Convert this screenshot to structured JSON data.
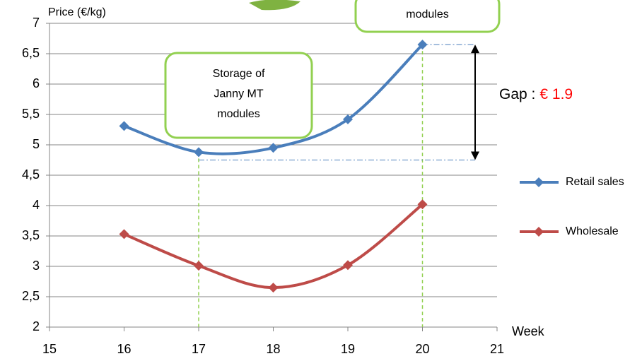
{
  "chart_data": {
    "type": "line",
    "y_axis_label": "Price (€/kg)",
    "x_axis_label": "Week",
    "x": [
      16,
      17,
      18,
      19,
      20
    ],
    "series": [
      {
        "name": "Retail sales",
        "color": "#4a7ebb",
        "values": [
          5.31,
          4.88,
          4.95,
          5.42,
          6.65
        ]
      },
      {
        "name": "Wholesale",
        "color": "#be4b48",
        "values": [
          3.53,
          3.01,
          2.65,
          3.02,
          4.02
        ]
      }
    ],
    "xlim": [
      15,
      21
    ],
    "xticks": [
      15,
      16,
      17,
      18,
      19,
      20,
      21
    ],
    "ylim": [
      2,
      7
    ],
    "yticks": [
      2,
      {
        "value": 2.5,
        "label": "2,5"
      },
      3,
      {
        "value": 3.5,
        "label": "3,5"
      },
      4,
      {
        "value": 4.5,
        "label": "4,5"
      },
      5,
      {
        "value": 5.5,
        "label": "5,5"
      },
      6,
      {
        "value": 6.5,
        "label": "6,5"
      },
      7
    ],
    "grid": true,
    "legend": "right",
    "callouts": [
      [
        "Storage of",
        "Janny MT",
        "modules"
      ],
      [
        "modules"
      ]
    ],
    "gap_text": "Gap :",
    "gap": 1.9,
    "gap_label": "€ 1.9",
    "gap_color": "#ff0000"
  }
}
